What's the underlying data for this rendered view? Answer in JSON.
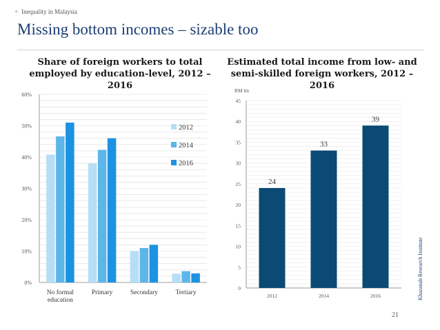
{
  "breadcrumb": {
    "plus": "+",
    "text": "Inequality in Malaysia"
  },
  "title": "Missing bottom incomes – sizable too",
  "page_number": "21",
  "source": "Khazanah Research Institute",
  "chart_data": [
    {
      "type": "bar",
      "title": "Share of foreign workers to total employed by education-level, 2012 – 2016",
      "categories": [
        "No formal education",
        "Primary",
        "Secondary",
        "Tertiary"
      ],
      "series": [
        {
          "name": "2012",
          "color": "#b6def6",
          "values": [
            40.8,
            38.0,
            10.0,
            2.8
          ]
        },
        {
          "name": "2014",
          "color": "#5cb6ea",
          "values": [
            46.6,
            42.3,
            11.0,
            3.6
          ]
        },
        {
          "name": "2016",
          "color": "#1d92e2",
          "values": [
            51.0,
            46.0,
            12.0,
            2.9
          ]
        }
      ],
      "yticks": [
        "0%",
        "10%",
        "20%",
        "30%",
        "40%",
        "50%",
        "60%"
      ],
      "ylim": [
        0,
        60
      ],
      "xlabel": "",
      "ylabel": "",
      "legend_position": "right"
    },
    {
      "type": "bar",
      "title": "Estimated total income from low- and semi-skilled foreign workers, 2012 – 2016",
      "unit_label": "RM bn",
      "categories": [
        "2012",
        "2014",
        "2016"
      ],
      "values": [
        24,
        33,
        39
      ],
      "data_labels": [
        "24",
        "33",
        "39"
      ],
      "color": "#0a4a74",
      "yticks": [
        "0",
        "5",
        "10",
        "15",
        "20",
        "25",
        "30",
        "35",
        "40",
        "45"
      ],
      "ylim": [
        0,
        45
      ],
      "xlabel": "",
      "ylabel": ""
    }
  ]
}
